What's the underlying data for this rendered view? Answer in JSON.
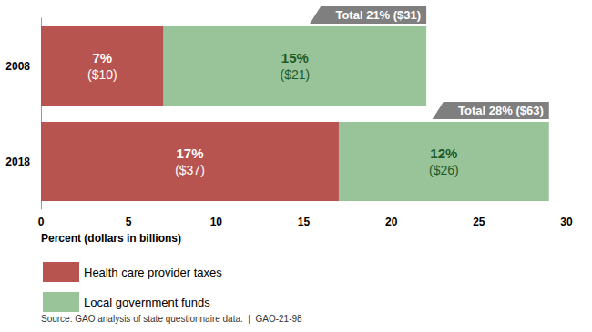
{
  "chart_data": {
    "type": "bar",
    "orientation": "horizontal",
    "stacked": true,
    "data_labels": true,
    "grid": false,
    "legend": "bottom-left",
    "categories": [
      "2008",
      "2018"
    ],
    "series": [
      {
        "name": "Health care provider taxes",
        "color": "#b85450",
        "values": [
          7,
          17
        ],
        "value_labels": [
          "7%\n($10)",
          "17%\n($37)"
        ]
      },
      {
        "name": "Local government funds",
        "color": "#99c499",
        "values": [
          15,
          12
        ],
        "value_labels": [
          "15%\n($21)",
          "12%\n($26)"
        ]
      }
    ],
    "xlim": [
      0,
      30
    ],
    "xticks": [
      0,
      5,
      10,
      15,
      20,
      25,
      30
    ],
    "x_label": "Percent (dollars in billions)",
    "annotations": [
      {
        "category": "2008",
        "text": "Total 21% ($31)"
      },
      {
        "category": "2018",
        "text": "Total 28% ($63)"
      }
    ],
    "source": "Source: GAO analysis of state questionnaire data.  |  GAO-21-98"
  }
}
